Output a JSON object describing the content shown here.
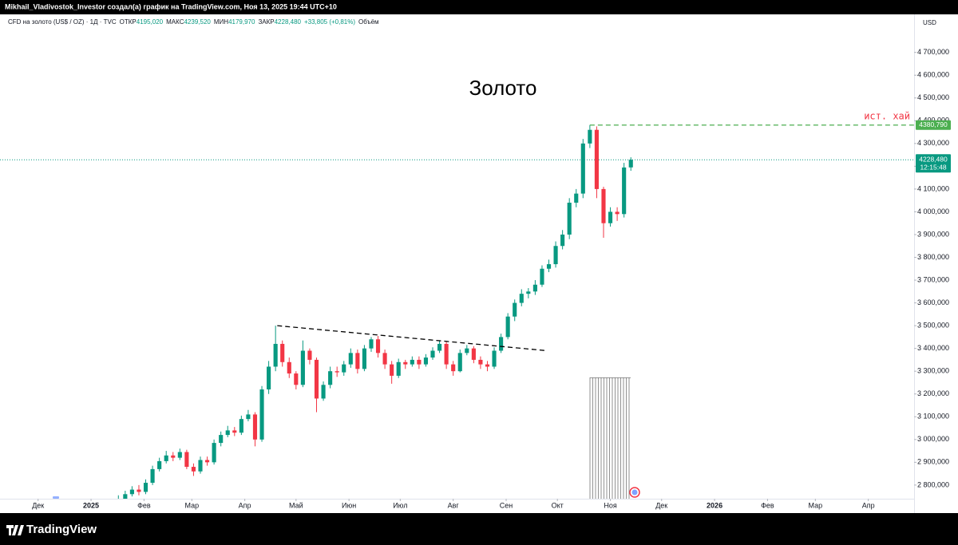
{
  "header": {
    "author_line": "Mikhail_Vladivostok_Investor создал(а) график на TradingView.com, Ноя 13, 2025 19:44 UTC+10"
  },
  "footer": {
    "brand": "TradingView"
  },
  "chart_data": {
    "type": "candlestick",
    "title": "Золото",
    "legend": {
      "symbol": "CFD на золото (US$ / OZ) · 1Д · TVC",
      "items": [
        {
          "label": "ОТКР",
          "value": "4195,020"
        },
        {
          "label": "МАКС",
          "value": "4239,520"
        },
        {
          "label": "МИН",
          "value": "4179,970"
        },
        {
          "label": "ЗАКР",
          "value": "4228,480"
        }
      ],
      "change": "+33,805 (+0,81%)",
      "volume": "Объём"
    },
    "currency": "USD",
    "up_color": "#089981",
    "down_color": "#f23645",
    "grid": false,
    "xlim": [
      -53.3,
      481.8
    ],
    "xticks": [
      {
        "value": -31,
        "label": "Дек"
      },
      {
        "value": 0,
        "label": "2025"
      },
      {
        "value": 31,
        "label": "Фев"
      },
      {
        "value": 59,
        "label": "Мар"
      },
      {
        "value": 90,
        "label": "Апр"
      },
      {
        "value": 120,
        "label": "Май"
      },
      {
        "value": 151,
        "label": "Июн"
      },
      {
        "value": 181,
        "label": "Июл"
      },
      {
        "value": 212,
        "label": "Авг"
      },
      {
        "value": 243,
        "label": "Сен"
      },
      {
        "value": 273,
        "label": "Окт"
      },
      {
        "value": 304,
        "label": "Ноя"
      },
      {
        "value": 334,
        "label": "Дек"
      },
      {
        "value": 365,
        "label": "2026"
      },
      {
        "value": 396,
        "label": "Фев"
      },
      {
        "value": 424,
        "label": "Мар"
      },
      {
        "value": 455,
        "label": "Апр"
      }
    ],
    "ylim": [
      2740,
      4790
    ],
    "yticks": [
      {
        "value": 2800,
        "label": "2 800,000"
      },
      {
        "value": 2900,
        "label": "2 900,000"
      },
      {
        "value": 3000,
        "label": "3 000,000"
      },
      {
        "value": 3100,
        "label": "3 100,000"
      },
      {
        "value": 3200,
        "label": "3 200,000"
      },
      {
        "value": 3300,
        "label": "3 300,000"
      },
      {
        "value": 3400,
        "label": "3 400,000"
      },
      {
        "value": 3500,
        "label": "3 500,000"
      },
      {
        "value": 3600,
        "label": "3 600,000"
      },
      {
        "value": 3700,
        "label": "3 700,000"
      },
      {
        "value": 3800,
        "label": "3 800,000"
      },
      {
        "value": 3900,
        "label": "3 900,000"
      },
      {
        "value": 4000,
        "label": "4 000,000"
      },
      {
        "value": 4100,
        "label": "4 100,000"
      },
      {
        "value": 4200,
        "label": "4 200,000"
      },
      {
        "value": 4300,
        "label": "4 300,000"
      },
      {
        "value": 4400,
        "label": "4 400,000"
      },
      {
        "value": 4500,
        "label": "4 500,000"
      },
      {
        "value": 4600,
        "label": "4 600,000"
      },
      {
        "value": 4700,
        "label": "4 700,000"
      }
    ],
    "x": [
      16,
      20,
      24,
      28,
      32,
      36,
      40,
      44,
      48,
      52,
      56,
      60,
      64,
      68,
      72,
      76,
      80,
      84,
      88,
      92,
      96,
      100,
      104,
      108,
      112,
      116,
      120,
      124,
      128,
      132,
      136,
      140,
      144,
      148,
      152,
      156,
      160,
      164,
      168,
      172,
      176,
      180,
      184,
      188,
      192,
      196,
      200,
      204,
      208,
      212,
      216,
      220,
      224,
      228,
      232,
      236,
      240,
      244,
      248,
      252,
      256,
      260,
      264,
      268,
      272,
      276,
      280,
      284,
      288,
      292,
      296,
      300,
      304,
      308,
      312,
      316
    ],
    "open": [
      2720,
      2740,
      2760,
      2780,
      2770,
      2810,
      2870,
      2905,
      2930,
      2920,
      2945,
      2880,
      2860,
      2910,
      2900,
      2985,
      3020,
      3040,
      3030,
      3090,
      3110,
      3000,
      3220,
      3320,
      3420,
      3340,
      3290,
      3240,
      3390,
      3350,
      3180,
      3240,
      3300,
      3295,
      3330,
      3380,
      3310,
      3400,
      3440,
      3380,
      3330,
      3280,
      3340,
      3330,
      3350,
      3330,
      3360,
      3390,
      3420,
      3330,
      3300,
      3380,
      3400,
      3350,
      3330,
      3320,
      3390,
      3450,
      3540,
      3600,
      3640,
      3650,
      3680,
      3750,
      3770,
      3850,
      3900,
      4040,
      4080,
      4300,
      4360,
      4100,
      3950,
      4000,
      3990,
      4195.02
    ],
    "high": [
      2755,
      2775,
      2795,
      2800,
      2825,
      2885,
      2920,
      2950,
      2945,
      2960,
      2955,
      2895,
      2925,
      2925,
      3000,
      3035,
      3060,
      3055,
      3105,
      3130,
      3120,
      3235,
      3345,
      3500,
      3435,
      3360,
      3300,
      3435,
      3400,
      3360,
      3255,
      3320,
      3320,
      3345,
      3400,
      3395,
      3415,
      3450,
      3455,
      3395,
      3345,
      3355,
      3350,
      3365,
      3365,
      3375,
      3405,
      3435,
      3430,
      3345,
      3395,
      3415,
      3410,
      3365,
      3345,
      3405,
      3465,
      3555,
      3615,
      3660,
      3665,
      3700,
      3765,
      3790,
      3870,
      3920,
      4060,
      4100,
      4320,
      4381,
      4375,
      4110,
      4020,
      4020,
      4215,
      4239.52
    ],
    "low": [
      2705,
      2730,
      2750,
      2755,
      2760,
      2800,
      2860,
      2895,
      2905,
      2910,
      2870,
      2840,
      2850,
      2885,
      2890,
      2970,
      3010,
      3015,
      3020,
      3080,
      2970,
      2990,
      3200,
      3300,
      3320,
      3270,
      3220,
      3230,
      3330,
      3120,
      3170,
      3225,
      3275,
      3280,
      3315,
      3290,
      3300,
      3385,
      3360,
      3310,
      3245,
      3270,
      3310,
      3320,
      3310,
      3320,
      3350,
      3380,
      3310,
      3280,
      3295,
      3370,
      3335,
      3310,
      3300,
      3310,
      3380,
      3440,
      3520,
      3585,
      3620,
      3635,
      3670,
      3735,
      3755,
      3835,
      3880,
      4020,
      4060,
      4280,
      4060,
      3886,
      3935,
      3960,
      3975,
      4179.97
    ],
    "close": [
      2740,
      2760,
      2780,
      2770,
      2810,
      2870,
      2905,
      2930,
      2920,
      2945,
      2880,
      2860,
      2910,
      2900,
      2985,
      3020,
      3040,
      3030,
      3090,
      3110,
      3000,
      3220,
      3320,
      3420,
      3340,
      3290,
      3240,
      3390,
      3350,
      3180,
      3240,
      3300,
      3295,
      3330,
      3380,
      3310,
      3400,
      3440,
      3380,
      3330,
      3280,
      3340,
      3330,
      3350,
      3330,
      3360,
      3390,
      3420,
      3330,
      3300,
      3380,
      3400,
      3350,
      3330,
      3320,
      3390,
      3450,
      3540,
      3600,
      3640,
      3650,
      3680,
      3750,
      3770,
      3850,
      3900,
      4040,
      4080,
      4300,
      4360,
      4100,
      3950,
      4000,
      3990,
      4194.675,
      4228.48
    ],
    "trendline": {
      "x": [
        109,
        267
      ],
      "y": [
        3500,
        3390
      ],
      "color": "#000000"
    },
    "high_line": {
      "x": 292,
      "value": 4380.79,
      "label": "4380,790",
      "text": "ист. хай",
      "color": "#4caf50",
      "text_color": "#f23645"
    },
    "last_price": {
      "value": 4228.48,
      "label": "4228,480",
      "countdown": "12:15:48",
      "color": "#089981"
    }
  }
}
